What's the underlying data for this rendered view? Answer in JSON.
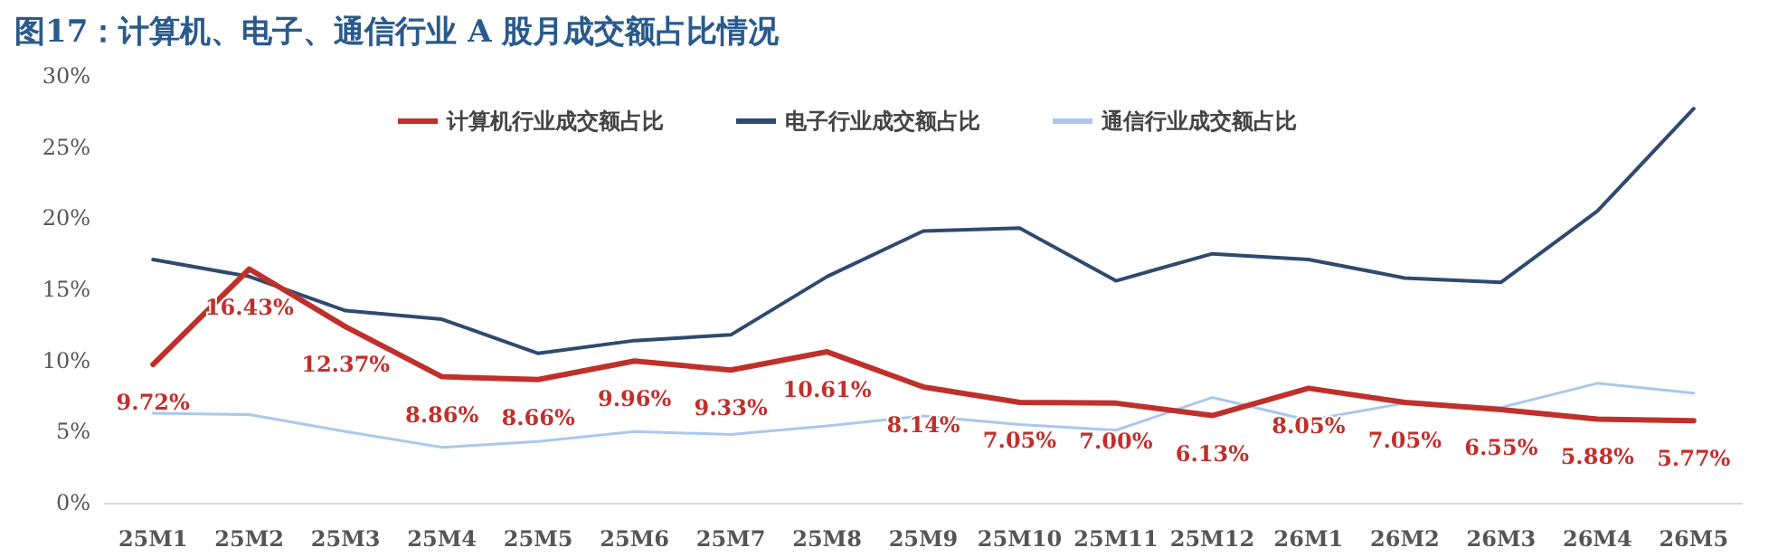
{
  "chart_data": {
    "type": "line",
    "title": "图17：计算机、电子、通信行业 A 股月成交额占比情况",
    "categories": [
      "25M1",
      "25M2",
      "25M3",
      "25M4",
      "25M5",
      "25M6",
      "25M7",
      "25M8",
      "25M9",
      "25M10",
      "25M11",
      "25M12",
      "26M1",
      "26M2",
      "26M3",
      "26M4",
      "26M5"
    ],
    "series": [
      {
        "name": "计算机行业成交额占比",
        "color": "#c0302b",
        "values": [
          9.72,
          16.43,
          12.37,
          8.86,
          8.66,
          9.96,
          9.33,
          10.61,
          8.14,
          7.05,
          7.0,
          6.13,
          8.05,
          7.05,
          6.55,
          5.88,
          5.77
        ],
        "value_labels": [
          "9.72%",
          "16.43%",
          "12.37%",
          "8.86%",
          "8.66%",
          "9.96%",
          "9.33%",
          "10.61%",
          "8.14%",
          "7.05%",
          "7.00%",
          "6.13%",
          "8.05%",
          "7.05%",
          "6.55%",
          "5.88%",
          "5.77%"
        ]
      },
      {
        "name": "电子行业成交额占比",
        "color": "#2f4a6e",
        "values": [
          17.1,
          15.9,
          13.5,
          12.9,
          10.5,
          11.4,
          11.8,
          15.9,
          19.1,
          19.3,
          15.6,
          17.5,
          17.1,
          15.8,
          15.5,
          20.5,
          27.7
        ]
      },
      {
        "name": "通信行业成交额占比",
        "color": "#a9c8ec",
        "values": [
          6.3,
          6.2,
          5.0,
          3.9,
          4.3,
          5.0,
          4.8,
          5.4,
          6.1,
          5.5,
          5.1,
          7.4,
          5.8,
          7.0,
          6.7,
          8.4,
          7.7
        ]
      }
    ],
    "ylim": [
      0,
      30
    ],
    "yticks": [
      {
        "value": 0,
        "label": "0%"
      },
      {
        "value": 5,
        "label": "5%"
      },
      {
        "value": 10,
        "label": "10%"
      },
      {
        "value": 15,
        "label": "15%"
      },
      {
        "value": 20,
        "label": "20%"
      },
      {
        "value": 25,
        "label": "25%"
      },
      {
        "value": 30,
        "label": "30%"
      }
    ],
    "grid": false,
    "legend": "top right",
    "marker": "none",
    "line_style": "solid"
  }
}
